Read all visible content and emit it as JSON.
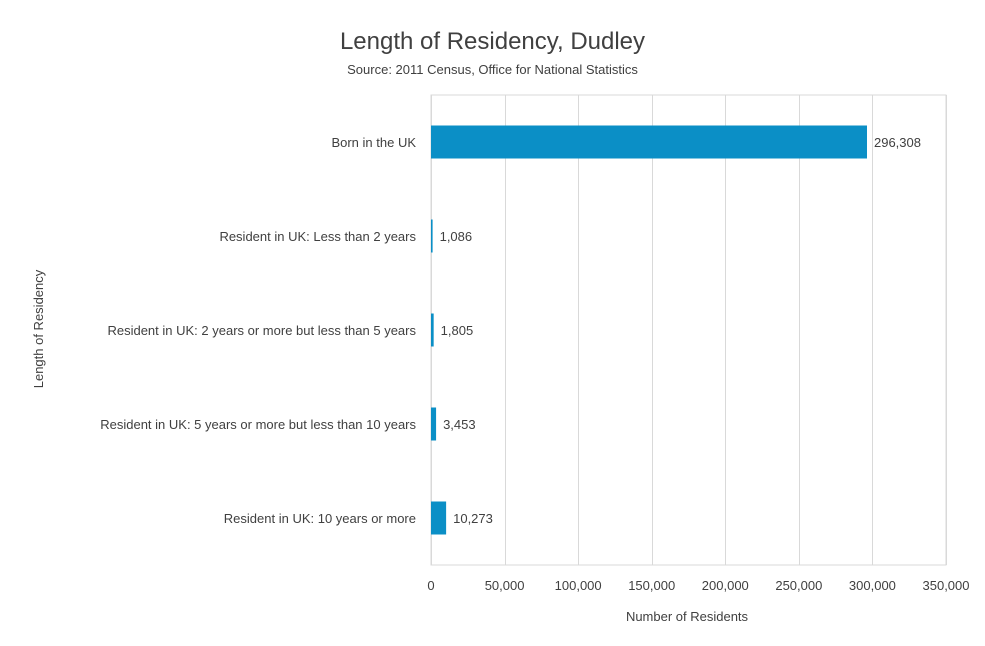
{
  "chart_data": {
    "type": "bar",
    "orientation": "horizontal",
    "title": "Length of Residency, Dudley",
    "subtitle": "Source: 2011 Census, Office for National Statistics",
    "xlabel": "Number of Residents",
    "ylabel": "Length of Residency",
    "categories": [
      "Born in the UK",
      "Resident in UK: Less than 2 years",
      "Resident in UK: 2 years or more but less than 5 years",
      "Resident in UK: 5 years or more but less than 10 years",
      "Resident in UK: 10 years or more"
    ],
    "values": [
      296308,
      1086,
      1805,
      3453,
      10273
    ],
    "data_labels": [
      "296,308",
      "1,086",
      "1,805",
      "3,453",
      "10,273"
    ],
    "xlim": [
      0,
      350000
    ],
    "xticks": [
      0,
      50000,
      100000,
      150000,
      200000,
      250000,
      300000,
      350000
    ],
    "xtick_labels": [
      "0",
      "50,000",
      "100,000",
      "150,000",
      "200,000",
      "250,000",
      "300,000",
      "350,000"
    ],
    "grid": "vertical",
    "legend": "none",
    "bar_color": "#0B8FC6",
    "grid_color": "#D9D9D9"
  }
}
